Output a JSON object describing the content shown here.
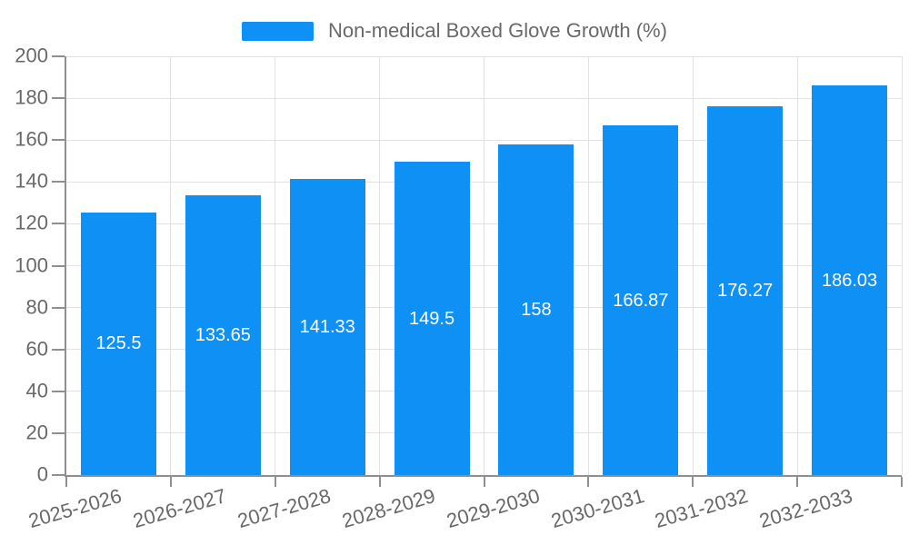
{
  "colors": {
    "accent": "#0e90f5",
    "grid": "#e2e2e2",
    "axis": "#8f8f8f",
    "text": "#696969",
    "bar_label": "#ffffff",
    "background": "#ffffff"
  },
  "chart_data": {
    "type": "bar",
    "title": "",
    "legend_position": "top-center",
    "categories": [
      "2025-2026",
      "2026-2027",
      "2027-2028",
      "2028-2029",
      "2029-2030",
      "2030-2031",
      "2031-2032",
      "2032-2033"
    ],
    "series": [
      {
        "name": "Non-medical Boxed Glove Growth (%)",
        "color": "#0e90f5",
        "values": [
          125.5,
          133.65,
          141.33,
          149.5,
          158,
          166.87,
          176.27,
          186.03
        ]
      }
    ],
    "value_labels": [
      "125.5",
      "133.65",
      "141.33",
      "149.5",
      "158",
      "166.87",
      "176.27",
      "186.03"
    ],
    "xlabel": "",
    "ylabel": "",
    "ylim": [
      0,
      200
    ],
    "yticks": [
      0,
      20,
      40,
      60,
      80,
      100,
      120,
      140,
      160,
      180,
      200
    ],
    "grid": "horizontal and vertical gridlines on",
    "x_label_rotation_deg": -16
  }
}
